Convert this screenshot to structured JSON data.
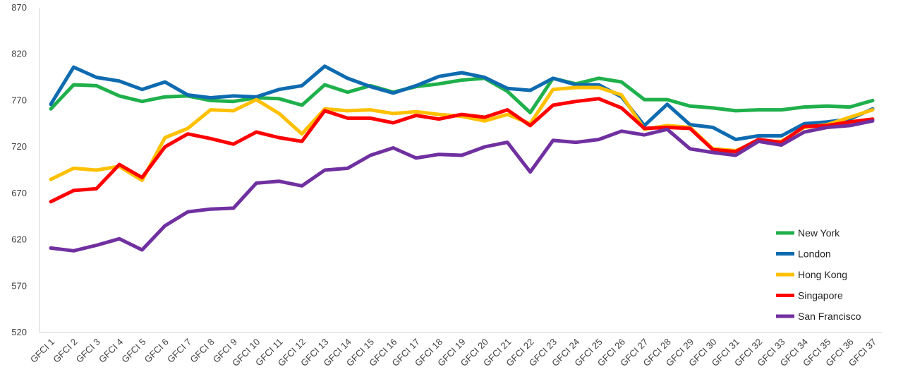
{
  "chart_data": {
    "type": "line",
    "title": "",
    "xlabel": "",
    "ylabel": "",
    "ylim": [
      520,
      870
    ],
    "yticks": [
      520,
      570,
      620,
      670,
      720,
      770,
      820,
      870
    ],
    "grid": false,
    "legend_position": "bottom-right",
    "categories": [
      "GFCI 1",
      "GFCI 2",
      "GFCI 3",
      "GFCI 4",
      "GFCI 5",
      "GFCI 6",
      "GFCI 7",
      "GFCI 8",
      "GFCI 9",
      "GFCI 10",
      "GFCI 11",
      "GFCI 12",
      "GFCI 13",
      "GFCI 14",
      "GFCI 15",
      "GFCI 16",
      "GFCI 17",
      "GFCI 18",
      "GFCI 19",
      "GFCI 20",
      "GFCI 21",
      "GFCI 22",
      "GFCI 23",
      "GFCI 24",
      "GFCI 25",
      "GFCI 26",
      "GFCI 27",
      "GFCI 28",
      "GFCI 29",
      "GFCI 30",
      "GFCI 31",
      "GFCI 32",
      "GFCI 33",
      "GFCI 34",
      "GFCI 35",
      "GFCI 36",
      "GFCI 37"
    ],
    "series": [
      {
        "name": "New York",
        "color": "#1FB04B",
        "values": [
          761,
          787,
          786,
          775,
          769,
          774,
          775,
          770,
          769,
          773,
          772,
          765,
          787,
          779,
          786,
          779,
          785,
          788,
          792,
          794,
          780,
          757,
          794,
          788,
          794,
          790,
          771,
          771,
          764,
          762,
          759,
          760,
          760,
          763,
          764,
          763,
          770
        ]
      },
      {
        "name": "London",
        "color": "#0E6BB0",
        "values": [
          766,
          806,
          795,
          791,
          782,
          790,
          776,
          773,
          775,
          774,
          782,
          786,
          807,
          794,
          785,
          778,
          786,
          796,
          800,
          795,
          783,
          781,
          794,
          787,
          787,
          774,
          743,
          766,
          744,
          741,
          728,
          732,
          732,
          745,
          747,
          750,
          761
        ]
      },
      {
        "name": "Hong Kong",
        "color": "#FFC000",
        "values": [
          685,
          697,
          695,
          699,
          684,
          730,
          740,
          760,
          759,
          771,
          756,
          734,
          761,
          759,
          760,
          756,
          758,
          755,
          753,
          748,
          755,
          745,
          782,
          784,
          784,
          776,
          739,
          743,
          741,
          718,
          716,
          726,
          726,
          741,
          744,
          752,
          760
        ]
      },
      {
        "name": "Singapore",
        "color": "#FF0000",
        "values": [
          661,
          673,
          675,
          701,
          687,
          720,
          734,
          729,
          723,
          736,
          730,
          726,
          759,
          751,
          751,
          746,
          754,
          750,
          755,
          752,
          760,
          743,
          765,
          769,
          772,
          762,
          740,
          741,
          740,
          717,
          715,
          728,
          725,
          742,
          743,
          747,
          750
        ]
      },
      {
        "name": "San Francisco",
        "color": "#7030A0",
        "values": [
          611,
          608,
          614,
          621,
          609,
          635,
          650,
          653,
          654,
          681,
          683,
          678,
          695,
          697,
          711,
          719,
          708,
          712,
          711,
          720,
          725,
          693,
          727,
          725,
          728,
          737,
          733,
          739,
          718,
          714,
          711,
          726,
          722,
          736,
          741,
          743,
          748
        ]
      }
    ]
  }
}
